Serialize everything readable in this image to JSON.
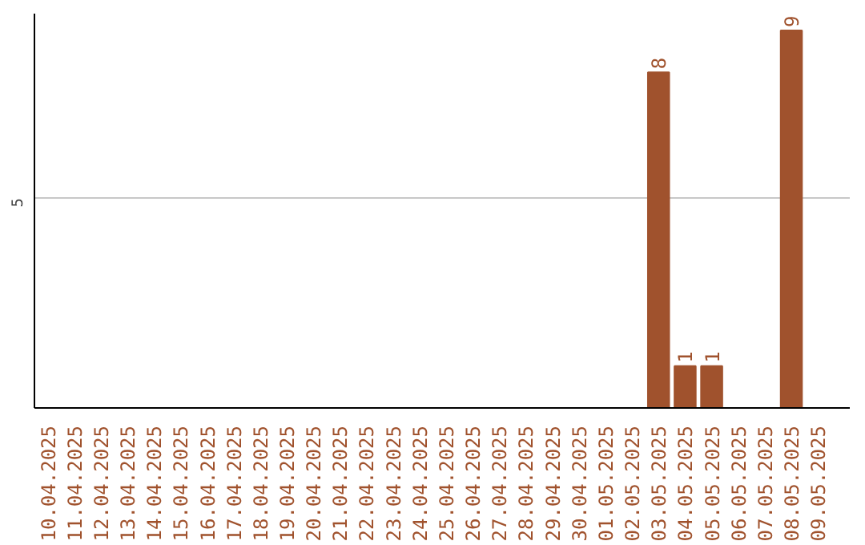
{
  "chart_data": {
    "type": "bar",
    "categories": [
      "10.04.2025",
      "11.04.2025",
      "12.04.2025",
      "13.04.2025",
      "14.04.2025",
      "15.04.2025",
      "16.04.2025",
      "17.04.2025",
      "18.04.2025",
      "19.04.2025",
      "20.04.2025",
      "21.04.2025",
      "22.04.2025",
      "23.04.2025",
      "24.04.2025",
      "25.04.2025",
      "26.04.2025",
      "27.04.2025",
      "28.04.2025",
      "29.04.2025",
      "30.04.2025",
      "01.05.2025",
      "02.05.2025",
      "03.05.2025",
      "04.05.2025",
      "05.05.2025",
      "06.05.2025",
      "07.05.2025",
      "08.05.2025",
      "09.05.2025"
    ],
    "values": [
      null,
      null,
      null,
      null,
      null,
      null,
      null,
      null,
      null,
      null,
      null,
      null,
      null,
      null,
      null,
      null,
      null,
      null,
      null,
      null,
      null,
      null,
      null,
      8,
      1,
      1,
      null,
      null,
      9,
      null
    ],
    "color": "#a0522d",
    "ylim": [
      0,
      9.4
    ],
    "yticks": [
      5
    ],
    "grid": "y",
    "data_labels": true
  }
}
